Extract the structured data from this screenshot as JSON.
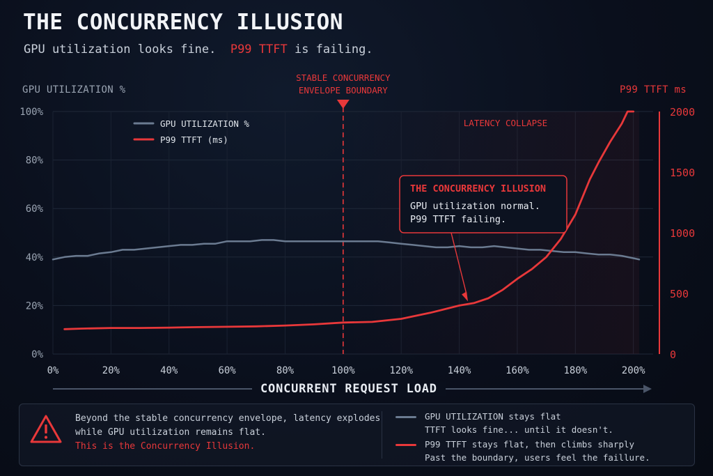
{
  "title": "THE CONCURRENCY ILLUSION",
  "subtitle": {
    "part1": "GPU utilization looks fine.",
    "part2": "P99 TTFT",
    "part3": "is failing."
  },
  "colors": {
    "gpu": "#6b7b91",
    "p99": "#e8383a",
    "background": "#0a0f1c"
  },
  "chart_data": {
    "type": "line",
    "xlabel": "CONCURRENT REQUEST LOAD",
    "ylabel_left": "GPU UTILIZATION %",
    "ylabel_right": "P99 TTFT ms",
    "x_ticks": [
      "0%",
      "20%",
      "40%",
      "60%",
      "80%",
      "100%",
      "120%",
      "140%",
      "160%",
      "180%",
      "200%"
    ],
    "y_left_ticks": [
      "0%",
      "20%",
      "40%",
      "60%",
      "80%",
      "100%"
    ],
    "y_right_ticks": [
      "0",
      "500",
      "1000",
      "1500",
      "2000"
    ],
    "xlim": [
      0,
      202
    ],
    "ylim_left": [
      0,
      100
    ],
    "ylim_right": [
      0,
      2000
    ],
    "grid": true,
    "legend": [
      "GPU UTILIZATION %",
      "P99 TTFT (ms)"
    ],
    "series": [
      {
        "name": "GPU UTILIZATION %",
        "axis": "left",
        "x": [
          0,
          4,
          8,
          12,
          16,
          20,
          24,
          28,
          32,
          36,
          40,
          44,
          48,
          52,
          56,
          60,
          64,
          68,
          72,
          76,
          80,
          84,
          88,
          92,
          96,
          100,
          104,
          108,
          112,
          116,
          120,
          124,
          128,
          132,
          136,
          140,
          144,
          148,
          152,
          156,
          160,
          164,
          168,
          172,
          176,
          180,
          184,
          188,
          192,
          196,
          200,
          202
        ],
        "values": [
          39,
          40,
          40.5,
          40.5,
          41.5,
          42,
          43,
          43,
          43.5,
          44,
          44.5,
          45,
          45,
          45.5,
          45.5,
          46.5,
          46.5,
          46.5,
          47,
          47,
          46.5,
          46.5,
          46.5,
          46.5,
          46.5,
          46.5,
          46.5,
          46.5,
          46.5,
          46,
          45.5,
          45,
          44.5,
          44,
          44,
          44.5,
          44,
          44,
          44.5,
          44,
          43.5,
          43,
          43,
          42.5,
          42,
          42,
          41.5,
          41,
          41,
          40.5,
          39.5,
          39
        ]
      },
      {
        "name": "P99 TTFT (ms)",
        "axis": "right",
        "x": [
          4,
          10,
          20,
          30,
          40,
          50,
          60,
          70,
          80,
          90,
          100,
          110,
          120,
          130,
          140,
          145,
          150,
          155,
          160,
          165,
          170,
          175,
          180,
          185,
          188,
          192,
          196,
          198,
          200
        ],
        "values": [
          205,
          210,
          215,
          215,
          218,
          222,
          225,
          228,
          235,
          245,
          260,
          265,
          290,
          340,
          400,
          420,
          460,
          530,
          620,
          700,
          800,
          950,
          1150,
          1440,
          1580,
          1750,
          1900,
          2000,
          2000
        ]
      }
    ],
    "annotations": {
      "boundary": {
        "x": 100,
        "label_line1": "STABLE CONCURRENCY",
        "label_line2": "ENVELOPE BOUNDARY"
      },
      "region_label": "LATENCY COLLAPSE",
      "callout": {
        "title": "THE CONCURRENCY ILLUSION",
        "line1": "GPU utilization normal.",
        "line2": "P99 TTFT failing.",
        "target_x": 143,
        "target_y_ms": 400
      }
    }
  },
  "footer": {
    "line1": "Beyond the stable concurrency envelope, latency explodes",
    "line2": "while GPU utilization remains flat.",
    "line3": "This is the Concurrency Illusion.",
    "legend_gpu_line1": "GPU UTILIZATION stays flat",
    "legend_gpu_line2": "TTFT looks fine... until it doesn't.",
    "legend_p99_line1": "P99 TTFT stays flat, then climbs sharply",
    "legend_p99_line2": "Past the boundary, users feel the faillure."
  }
}
